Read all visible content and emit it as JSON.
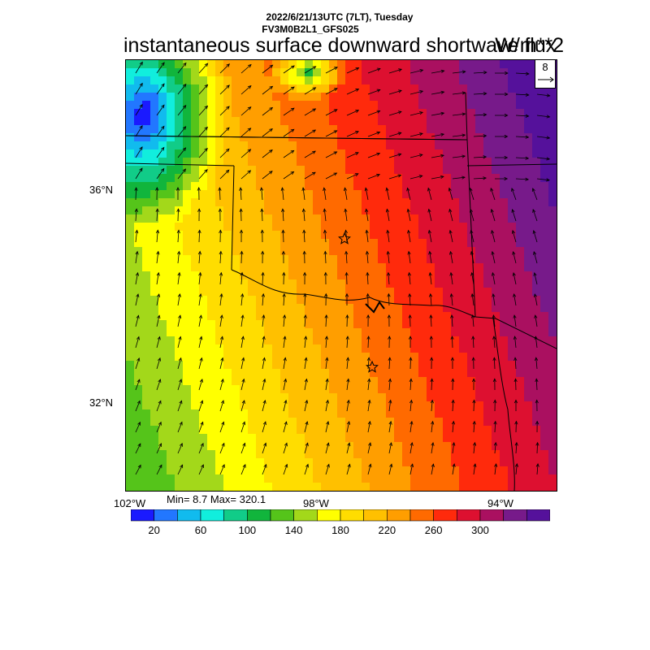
{
  "header": {
    "line1": "2022/6/21/13UTC (7LT), Tuesday",
    "line2": "FV3M0B2L1_GFS025",
    "title": "instantaneous surface downward shortwave flux",
    "units": "W/m**2"
  },
  "map": {
    "lon_range": [
      -102.5,
      -92.8
    ],
    "lat_range": [
      30.3,
      38.7
    ],
    "lat_labels": [
      "36°N",
      "32°N"
    ],
    "lon_labels": [
      "102°W",
      "98°W",
      "94°W"
    ],
    "field_palette": [
      "#1a1aff",
      "#2277ff",
      "#11bbee",
      "#11eedd",
      "#11cc88",
      "#11b53c",
      "#55c41a",
      "#a3d81a",
      "#ffff00",
      "#ffdd00",
      "#ffc000",
      "#ff9e00",
      "#ff6a00",
      "#ff2a0c",
      "#dd1030",
      "#aa1060",
      "#771a8a",
      "#55119b"
    ],
    "star_markers": 2,
    "vector_reference": {
      "value": "8"
    }
  },
  "stats": {
    "min_max": "Min= 8.7 Max= 320.1"
  },
  "colorbar": {
    "colors": [
      "#1a1aff",
      "#2277ff",
      "#11bbee",
      "#11eedd",
      "#11cc88",
      "#11b53c",
      "#55c41a",
      "#a3d81a",
      "#ffff00",
      "#ffdd00",
      "#ffc000",
      "#ff9e00",
      "#ff6a00",
      "#ff2a0c",
      "#dd1030",
      "#aa1060",
      "#771a8a",
      "#55119b"
    ],
    "labels": [
      "20",
      "60",
      "100",
      "140",
      "180",
      "220",
      "260",
      "300"
    ]
  }
}
